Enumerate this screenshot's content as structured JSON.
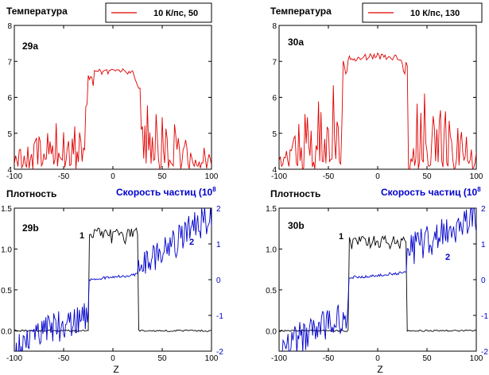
{
  "figure": {
    "x_axis_label": "Z",
    "panels": [
      {
        "id": "29a",
        "title": "Температура",
        "panel_label": "29a",
        "legend": {
          "entry": "10 К/пс, 50",
          "color": "#e00000"
        }
      },
      {
        "id": "30a",
        "title": "Температура",
        "panel_label": "30a",
        "legend": {
          "entry": "10 К/пс, 130",
          "color": "#e00000"
        }
      },
      {
        "id": "29b",
        "title": "Плотность",
        "right_title": "Скорость частиц (10",
        "right_title_sup": "8",
        "panel_label": "29b",
        "curve_labels": [
          "1",
          "2"
        ]
      },
      {
        "id": "30b",
        "title": "Плотность",
        "right_title": "Скорость частиц (10",
        "right_title_sup": "8",
        "panel_label": "30b",
        "curve_labels": [
          "1",
          "2"
        ]
      }
    ]
  },
  "chart_data": [
    {
      "id": "29a",
      "type": "line",
      "title": "Температура",
      "xlabel": "",
      "ylabel": "",
      "xlim": [
        -100,
        100
      ],
      "ylim": [
        4,
        8
      ],
      "xticks": [
        -100,
        -50,
        0,
        50,
        100
      ],
      "yticks": [
        4,
        5,
        6,
        7,
        8
      ],
      "grid": false,
      "legend": "top-right",
      "series": [
        {
          "name": "10 К/пс, 50",
          "color": "#e00000",
          "profile": {
            "plateau": 6.75,
            "left": -25,
            "right": 28,
            "noise_base": 4.0,
            "noise_amp": 1.4,
            "seed": 29
          }
        }
      ]
    },
    {
      "id": "30a",
      "type": "line",
      "title": "Температура",
      "xlabel": "",
      "ylabel": "",
      "xlim": [
        -100,
        100
      ],
      "ylim": [
        4,
        8
      ],
      "xticks": [
        -100,
        -50,
        0,
        50,
        100
      ],
      "yticks": [
        4,
        5,
        6,
        7,
        8
      ],
      "grid": false,
      "legend": "top-right",
      "series": [
        {
          "name": "10 К/пс, 130",
          "color": "#e00000",
          "profile": {
            "plateau": 7.15,
            "left": -35,
            "right": 30,
            "noise_base": 4.0,
            "noise_amp": 2.0,
            "seed": 30
          }
        }
      ]
    },
    {
      "id": "29b",
      "type": "line",
      "title": "Плотность",
      "xlabel": "Z",
      "ylabel": "",
      "xlim": [
        -100,
        100
      ],
      "ylim": [
        -0.25,
        1.5
      ],
      "y2lim": [
        -2,
        2
      ],
      "xticks": [
        -100,
        -50,
        0,
        50,
        100
      ],
      "yticks": [
        0.0,
        0.5,
        1.0,
        1.5
      ],
      "y2ticks": [
        -2,
        -1,
        0,
        1,
        2
      ],
      "grid": false,
      "series": [
        {
          "name": "1",
          "color": "#000000",
          "axis": "left",
          "profile": {
            "low": 0.0,
            "high": 1.2,
            "left": -25,
            "right": 26,
            "seed": 129
          }
        },
        {
          "name": "2",
          "color": "#0000cc",
          "axis": "right",
          "profile": {
            "left": -25,
            "right": 26,
            "inner": 0.0,
            "left_start": -1.9,
            "left_end": -0.9,
            "right_start": 0.3,
            "right_end": 1.8,
            "seed": 229
          }
        }
      ]
    },
    {
      "id": "30b",
      "type": "line",
      "title": "Плотность",
      "xlabel": "Z",
      "ylabel": "",
      "xlim": [
        -100,
        100
      ],
      "ylim": [
        -0.25,
        1.5
      ],
      "y2lim": [
        -2,
        2
      ],
      "xticks": [
        -100,
        -50,
        0,
        50,
        100
      ],
      "yticks": [
        0.0,
        0.5,
        1.0,
        1.5
      ],
      "y2ticks": [
        -2,
        -1,
        0,
        1,
        2
      ],
      "grid": false,
      "series": [
        {
          "name": "1",
          "color": "#000000",
          "axis": "left",
          "profile": {
            "low": 0.0,
            "high": 1.1,
            "left": -30,
            "right": 30,
            "seed": 130
          }
        },
        {
          "name": "2",
          "color": "#0000cc",
          "axis": "right",
          "profile": {
            "left": -30,
            "right": 30,
            "inner": 0.05,
            "left_start": -1.9,
            "left_end": -1.0,
            "right_start": 0.8,
            "right_end": 1.7,
            "seed": 230
          }
        }
      ]
    }
  ]
}
